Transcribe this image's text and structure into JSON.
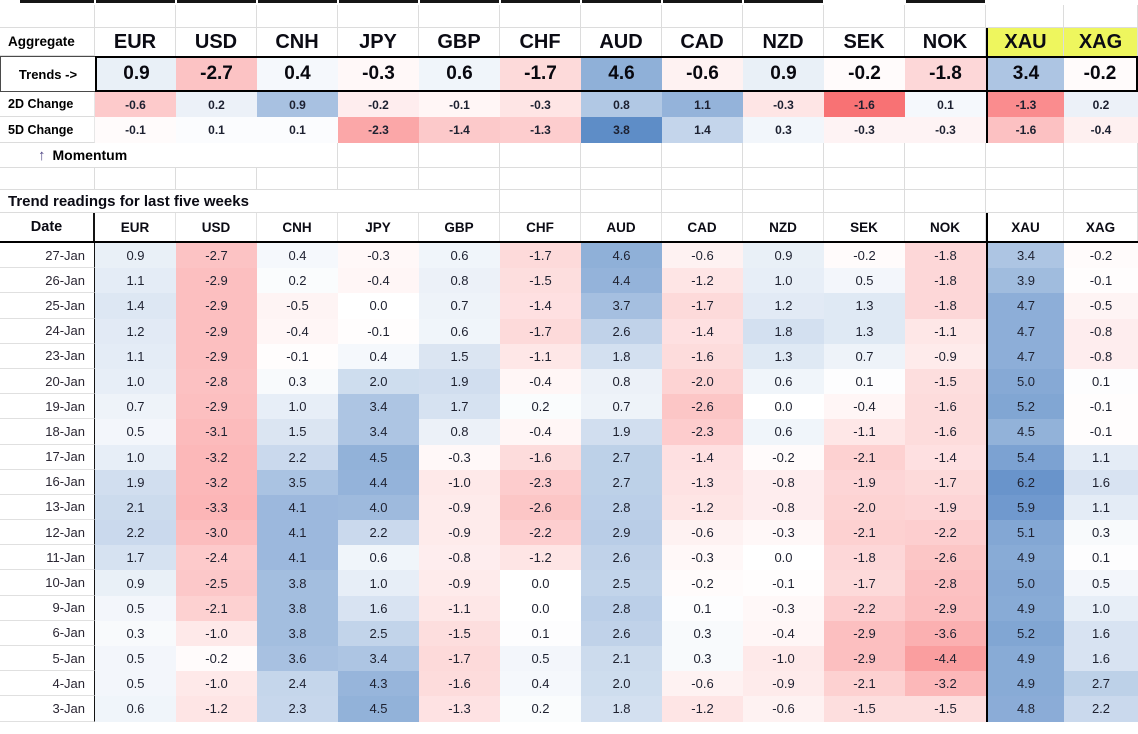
{
  "sheet": {
    "currencies": [
      "EUR",
      "USD",
      "CNH",
      "JPY",
      "GBP",
      "CHF",
      "AUD",
      "CAD",
      "NZD",
      "SEK",
      "NOK",
      "XAU",
      "XAG"
    ],
    "aggregate": {
      "corner_label": "Aggregate",
      "rows": [
        {
          "label": "Trends ->",
          "kind": "trends",
          "values": [
            "0.9",
            "-2.7",
            "0.4",
            "-0.3",
            "0.6",
            "-1.7",
            "4.6",
            "-0.6",
            "0.9",
            "-0.2",
            "-1.8",
            "3.4",
            "-0.2"
          ]
        },
        {
          "label": "2D Change",
          "kind": "change2d",
          "values": [
            "-0.6",
            "0.2",
            "0.9",
            "-0.2",
            "-0.1",
            "-0.3",
            "0.8",
            "1.1",
            "-0.3",
            "-1.6",
            "0.1",
            "-1.3",
            "0.2"
          ]
        },
        {
          "label": "5D Change",
          "kind": "change5d",
          "values": [
            "-0.1",
            "0.1",
            "0.1",
            "-2.3",
            "-1.4",
            "-1.3",
            "3.8",
            "1.4",
            "0.3",
            "-0.3",
            "-0.3",
            "-1.6",
            "-0.4"
          ]
        }
      ]
    },
    "momentum_arrow": "↑",
    "momentum_label": "Momentum",
    "table": {
      "title": "Trend readings for last five weeks",
      "date_header": "Date",
      "rows": [
        {
          "date": "27-Jan",
          "values": [
            "0.9",
            "-2.7",
            "0.4",
            "-0.3",
            "0.6",
            "-1.7",
            "4.6",
            "-0.6",
            "0.9",
            "-0.2",
            "-1.8",
            "3.4",
            "-0.2"
          ]
        },
        {
          "date": "26-Jan",
          "values": [
            "1.1",
            "-2.9",
            "0.2",
            "-0.4",
            "0.8",
            "-1.5",
            "4.4",
            "-1.2",
            "1.0",
            "0.5",
            "-1.8",
            "3.9",
            "-0.1"
          ]
        },
        {
          "date": "25-Jan",
          "values": [
            "1.4",
            "-2.9",
            "-0.5",
            "0.0",
            "0.7",
            "-1.4",
            "3.7",
            "-1.7",
            "1.2",
            "1.3",
            "-1.8",
            "4.7",
            "-0.5"
          ]
        },
        {
          "date": "24-Jan",
          "values": [
            "1.2",
            "-2.9",
            "-0.4",
            "-0.1",
            "0.6",
            "-1.7",
            "2.6",
            "-1.4",
            "1.8",
            "1.3",
            "-1.1",
            "4.7",
            "-0.8"
          ]
        },
        {
          "date": "23-Jan",
          "values": [
            "1.1",
            "-2.9",
            "-0.1",
            "0.4",
            "1.5",
            "-1.1",
            "1.8",
            "-1.6",
            "1.3",
            "0.7",
            "-0.9",
            "4.7",
            "-0.8"
          ]
        },
        {
          "date": "20-Jan",
          "values": [
            "1.0",
            "-2.8",
            "0.3",
            "2.0",
            "1.9",
            "-0.4",
            "0.8",
            "-2.0",
            "0.6",
            "0.1",
            "-1.5",
            "5.0",
            "0.1"
          ]
        },
        {
          "date": "19-Jan",
          "values": [
            "0.7",
            "-2.9",
            "1.0",
            "3.4",
            "1.7",
            "0.2",
            "0.7",
            "-2.6",
            "0.0",
            "-0.4",
            "-1.6",
            "5.2",
            "-0.1"
          ]
        },
        {
          "date": "18-Jan",
          "values": [
            "0.5",
            "-3.1",
            "1.5",
            "3.4",
            "0.8",
            "-0.4",
            "1.9",
            "-2.3",
            "0.6",
            "-1.1",
            "-1.6",
            "4.5",
            "-0.1"
          ]
        },
        {
          "date": "17-Jan",
          "values": [
            "1.0",
            "-3.2",
            "2.2",
            "4.5",
            "-0.3",
            "-1.6",
            "2.7",
            "-1.4",
            "-0.2",
            "-2.1",
            "-1.4",
            "5.4",
            "1.1"
          ]
        },
        {
          "date": "16-Jan",
          "values": [
            "1.9",
            "-3.2",
            "3.5",
            "4.4",
            "-1.0",
            "-2.3",
            "2.7",
            "-1.3",
            "-0.8",
            "-1.9",
            "-1.7",
            "6.2",
            "1.6"
          ]
        },
        {
          "date": "13-Jan",
          "values": [
            "2.1",
            "-3.3",
            "4.1",
            "4.0",
            "-0.9",
            "-2.6",
            "2.8",
            "-1.2",
            "-0.8",
            "-2.0",
            "-1.9",
            "5.9",
            "1.1"
          ]
        },
        {
          "date": "12-Jan",
          "values": [
            "2.2",
            "-3.0",
            "4.1",
            "2.2",
            "-0.9",
            "-2.2",
            "2.9",
            "-0.6",
            "-0.3",
            "-2.1",
            "-2.2",
            "5.1",
            "0.3"
          ]
        },
        {
          "date": "11-Jan",
          "values": [
            "1.7",
            "-2.4",
            "4.1",
            "0.6",
            "-0.8",
            "-1.2",
            "2.6",
            "-0.3",
            "0.0",
            "-1.8",
            "-2.6",
            "4.9",
            "0.1"
          ]
        },
        {
          "date": "10-Jan",
          "values": [
            "0.9",
            "-2.5",
            "3.8",
            "1.0",
            "-0.9",
            "0.0",
            "2.5",
            "-0.2",
            "-0.1",
            "-1.7",
            "-2.8",
            "5.0",
            "0.5"
          ]
        },
        {
          "date": "9-Jan",
          "values": [
            "0.5",
            "-2.1",
            "3.8",
            "1.6",
            "-1.1",
            "0.0",
            "2.8",
            "0.1",
            "-0.3",
            "-2.2",
            "-2.9",
            "4.9",
            "1.0"
          ]
        },
        {
          "date": "6-Jan",
          "values": [
            "0.3",
            "-1.0",
            "3.8",
            "2.5",
            "-1.5",
            "0.1",
            "2.6",
            "0.3",
            "-0.4",
            "-2.9",
            "-3.6",
            "5.2",
            "1.6"
          ]
        },
        {
          "date": "5-Jan",
          "values": [
            "0.5",
            "-0.2",
            "3.6",
            "3.4",
            "-1.7",
            "0.5",
            "2.1",
            "0.3",
            "-1.0",
            "-2.9",
            "-4.4",
            "4.9",
            "1.6"
          ]
        },
        {
          "date": "4-Jan",
          "values": [
            "0.5",
            "-1.0",
            "2.4",
            "4.3",
            "-1.6",
            "0.4",
            "2.0",
            "-0.6",
            "-0.9",
            "-2.1",
            "-3.2",
            "4.9",
            "2.7"
          ]
        }
      ],
      "partial_row": {
        "date": "3-Jan",
        "values": [
          "0.6",
          "-1.2",
          "2.3",
          "4.5",
          "-1.3",
          "0.2",
          "1.8",
          "-1.2",
          "-0.6",
          "-1.5",
          "-1.5",
          "4.8",
          "2.2"
        ]
      }
    },
    "colors": {
      "positive_blue": "#5A8AC6",
      "negative_red": "#F8696B",
      "highlight_yellow": "#EEF65E"
    },
    "scales": {
      "trend_max": 6.8,
      "change2d_max": 1.7,
      "change5d_max": 3.9
    }
  }
}
